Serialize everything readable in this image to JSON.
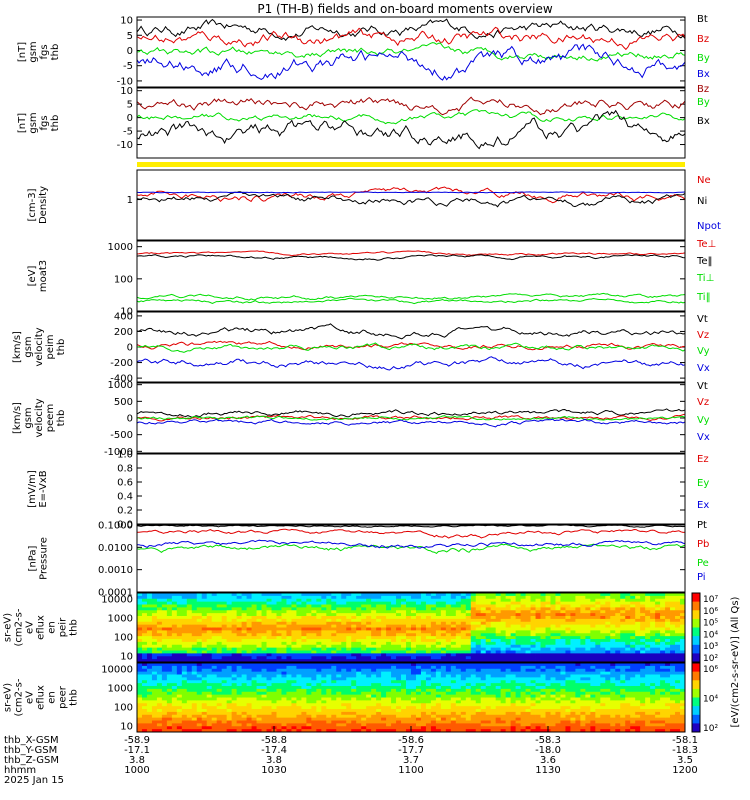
{
  "title": "P1  (TH-B) fields and on-board moments overview",
  "colors": {
    "black": "#000000",
    "red": "#e00000",
    "green": "#00dd00",
    "blue": "#0000e0",
    "darkred": "#a00000",
    "yellow": "#ffee00"
  },
  "chart_data": {
    "type": "line",
    "x_axis": {
      "ticks": [
        {
          "hhmm": "1000",
          "x": "-58.9",
          "y": "-17.1",
          "z": "3.8"
        },
        {
          "hhmm": "1030",
          "x": "-58.8",
          "y": "-17.4",
          "z": "3.8"
        },
        {
          "hhmm": "1100",
          "x": "-58.6",
          "y": "-17.7",
          "z": "3.7"
        },
        {
          "hhmm": "1130",
          "x": "-58.3",
          "y": "-18.0",
          "z": "3.6"
        },
        {
          "hhmm": "1200",
          "x": "-58.1",
          "y": "-18.3",
          "z": "3.5"
        }
      ],
      "row_labels": [
        "thb_X-GSM",
        "thb_Y-GSM",
        "thb_Z-GSM",
        "hhmm"
      ],
      "date": "2025 Jan 15"
    },
    "panels": [
      {
        "id": "fgs_gsm",
        "ylabel": [
          "thb",
          "fgs",
          "gsm",
          "[nT]"
        ],
        "ylim": [
          -12,
          11
        ],
        "ticks": [
          "10",
          "5",
          "0",
          "-5",
          "-10"
        ],
        "series": [
          {
            "name": "Bt",
            "color": "black"
          },
          {
            "name": "Bz",
            "color": "red"
          },
          {
            "name": "By",
            "color": "green"
          },
          {
            "name": "Bx",
            "color": "blue"
          }
        ]
      },
      {
        "id": "fgs_dsl",
        "ylabel": [
          "thb",
          "fgs",
          "gsm",
          "[nT]"
        ],
        "ylim": [
          -15,
          11
        ],
        "ticks": [
          "10",
          "5",
          "0",
          "-5",
          "-10"
        ],
        "series": [
          {
            "name": "Bz",
            "color": "darkred"
          },
          {
            "name": "By",
            "color": "green"
          },
          {
            "name": "Bx",
            "color": "black"
          }
        ]
      },
      {
        "id": "density",
        "ylabel": [
          "Density",
          "[cm-3]"
        ],
        "scale": "log",
        "ylim": [
          0.15,
          4
        ],
        "ticks": [
          "1"
        ],
        "series": [
          {
            "name": "Ne",
            "color": "red"
          },
          {
            "name": "Ni",
            "color": "black"
          },
          {
            "name": "Npot",
            "color": "blue"
          }
        ]
      },
      {
        "id": "temperature",
        "ylabel": [
          "moat3",
          "[eV]"
        ],
        "scale": "log",
        "ylim": [
          10,
          1500
        ],
        "ticks": [
          "1000",
          "100",
          "10"
        ],
        "series": [
          {
            "name": "Te⊥",
            "color": "red"
          },
          {
            "name": "Te‖",
            "color": "black"
          },
          {
            "name": "Ti⊥",
            "color": "green"
          },
          {
            "name": "Ti‖",
            "color": "green"
          }
        ]
      },
      {
        "id": "peim_velocity",
        "ylabel": [
          "thb",
          "peim",
          "velocity",
          "gsm",
          "[km/s]"
        ],
        "ylim": [
          -450,
          450
        ],
        "ticks": [
          "400",
          "200",
          "0",
          "-200",
          "-400"
        ],
        "series": [
          {
            "name": "Vt",
            "color": "black"
          },
          {
            "name": "Vz",
            "color": "red"
          },
          {
            "name": "Vy",
            "color": "green"
          },
          {
            "name": "Vx",
            "color": "blue"
          }
        ]
      },
      {
        "id": "peem_velocity",
        "ylabel": [
          "thb",
          "peem",
          "velocity",
          "gsm",
          "[km/s]"
        ],
        "ylim": [
          -1050,
          1050
        ],
        "ticks": [
          "1000",
          "500",
          "0",
          "-500",
          "-1000"
        ],
        "series": [
          {
            "name": "Vt",
            "color": "black"
          },
          {
            "name": "Vz",
            "color": "red"
          },
          {
            "name": "Vy",
            "color": "green"
          },
          {
            "name": "Vx",
            "color": "blue"
          }
        ]
      },
      {
        "id": "efield",
        "ylabel": [
          "E=-VxB",
          "[mV/m]"
        ],
        "ylim": [
          0,
          1
        ],
        "ticks": [
          "1.0",
          "0.8",
          "0.6",
          "0.4",
          "0.2",
          "0.0"
        ],
        "series": [
          {
            "name": "Ez",
            "color": "red"
          },
          {
            "name": "Ey",
            "color": "green"
          },
          {
            "name": "Ex",
            "color": "blue"
          }
        ]
      },
      {
        "id": "pressure",
        "ylabel": [
          "Pressure",
          "[nPa]"
        ],
        "scale": "log",
        "ylim": [
          0.0001,
          0.1
        ],
        "ticks": [
          "0.1000",
          "0.0100",
          "0.0010",
          "0.0001"
        ],
        "series": [
          {
            "name": "Pt",
            "color": "black"
          },
          {
            "name": "Pb",
            "color": "red"
          },
          {
            "name": "Pe",
            "color": "green"
          },
          {
            "name": "Pi",
            "color": "blue"
          }
        ]
      },
      {
        "id": "peir_spec",
        "type": "heatmap",
        "ylabel": [
          "thb",
          "peir",
          "en",
          "eflux",
          "eV",
          "(cm2-s-",
          "sr-eV)"
        ],
        "scale": "log",
        "ylim": [
          5,
          20000
        ],
        "ticks": [
          "10000",
          "1000",
          "100",
          "10"
        ]
      },
      {
        "id": "peer_spec",
        "type": "heatmap",
        "ylabel": [
          "thb",
          "peer",
          "en",
          "eflux",
          "eV",
          "(cm2-s-",
          "sr-eV)"
        ],
        "scale": "log",
        "ylim": [
          5,
          20000
        ],
        "ticks": [
          "10000",
          "1000",
          "100",
          "10"
        ]
      }
    ],
    "colorbar": {
      "label": "[eV/(cm2-s-sr-eV)] (All Qs)",
      "ticks_top": [
        "10⁷",
        "10⁶",
        "10⁵",
        "10⁴",
        "10³",
        "10²"
      ],
      "ticks_bottom": [
        "10⁶",
        "10⁴",
        "10²"
      ]
    }
  }
}
